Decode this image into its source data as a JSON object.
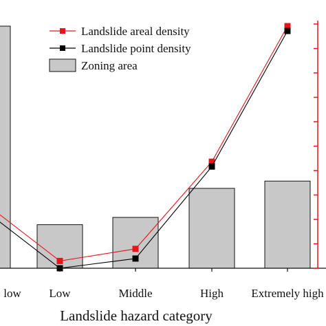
{
  "chart_data": {
    "type": "bar",
    "xlabel": "Landslide hazard category",
    "categories": [
      "Extremely low",
      "Low",
      "Middle",
      "High",
      "Extremely high"
    ],
    "visible_tick_labels": [
      "low",
      "Low",
      "Middle",
      "High",
      "Extremely high"
    ],
    "series": [
      {
        "name": "Zoning area",
        "kind": "bar",
        "color": "#c8c8c8",
        "values": [
          100,
          18,
          21,
          33,
          36
        ]
      },
      {
        "name": "Landslide areal density",
        "kind": "line",
        "color": "#e8141c",
        "values": [
          26,
          3,
          8,
          44,
          100
        ]
      },
      {
        "name": "Landslide point density",
        "kind": "line",
        "color": "#000000",
        "values": [
          23,
          0,
          4,
          42,
          98
        ]
      }
    ],
    "right_axis": {
      "color": "#e8141c",
      "tick_count": 11
    },
    "legend_position": "top-center"
  }
}
